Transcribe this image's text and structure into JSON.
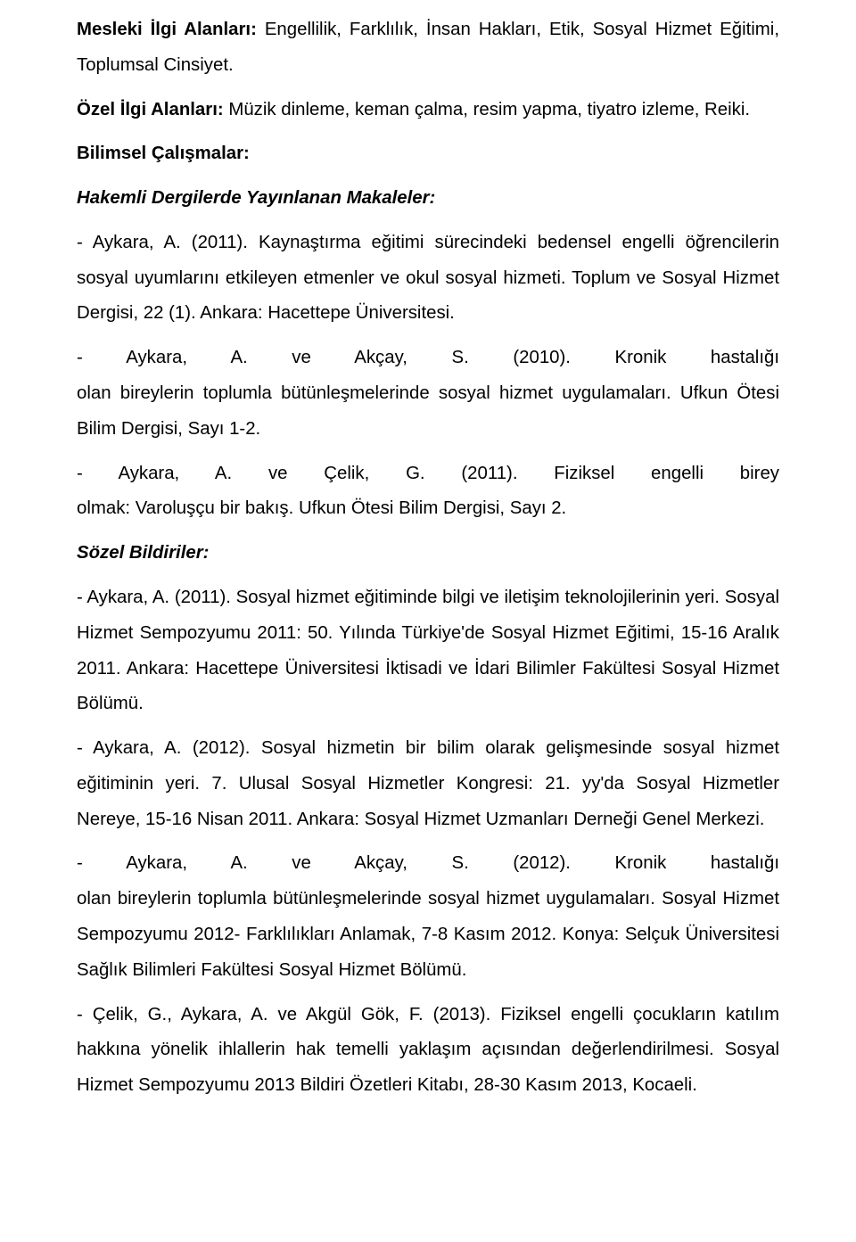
{
  "p1_label": "Mesleki İlgi Alanları:",
  "p1_text": " Engellilik, Farklılık, İnsan Hakları, Etik, Sosyal Hizmet Eğitimi, Toplumsal Cinsiyet.",
  "p2_label": "Özel İlgi Alanları:",
  "p2_text": " Müzik dinleme, keman çalma, resim yapma, tiyatro izleme, Reiki.",
  "p3_label": "Bilimsel Çalışmalar:",
  "p4_label": "Hakemli Dergilerde Yayınlanan Makaleler:",
  "p5": "- Aykara, A. (2011). Kaynaştırma eğitimi sürecindeki bedensel engelli öğrencilerin sosyal uyumlarını etkileyen etmenler ve okul sosyal hizmeti. Toplum ve Sosyal Hizmet Dergisi, 22 (1). Ankara: Hacettepe Üniversitesi.",
  "p6a": "-  Aykara,  A.  ve  Akçay,  S.  (2010).  Kronik  hastalığı",
  "p6b": "olan bireylerin toplumla bütünleşmelerinde sosyal hizmet uygulamaları. Ufkun Ötesi Bilim Dergisi, Sayı 1-2.",
  "p7a": "-  Aykara,  A.  ve  Çelik, G.  (2011).  Fiziksel  engelli  birey",
  "p7b": "olmak: Varoluşçu bir bakış. Ufkun Ötesi Bilim Dergisi, Sayı 2.",
  "p8_label": "Sözel Bildiriler:",
  "p9": "- Aykara, A. (2011). Sosyal hizmet eğitiminde bilgi ve iletişim teknolojilerinin yeri. Sosyal Hizmet Sempozyumu 2011: 50. Yılında Türkiye'de Sosyal Hizmet Eğitimi, 15-16 Aralık 2011. Ankara: Hacettepe Üniversitesi İktisadi ve İdari Bilimler Fakültesi Sosyal Hizmet Bölümü.",
  "p10": "- Aykara, A. (2012). Sosyal hizmetin bir bilim olarak gelişmesinde sosyal hizmet eğitiminin yeri. 7. Ulusal Sosyal Hizmetler Kongresi: 21. yy'da Sosyal Hizmetler Nereye, 15-16 Nisan 2011. Ankara: Sosyal Hizmet Uzmanları Derneği Genel Merkezi.",
  "p11a": "-  Aykara,  A.  ve  Akçay,  S.  (2012).  Kronik hastalığı",
  "p11b": "olan bireylerin toplumla bütünleşmelerinde sosyal hizmet uygulamaları. Sosyal Hizmet Sempozyumu 2012- Farklılıkları Anlamak, 7-8 Kasım 2012. Konya: Selçuk Üniversitesi Sağlık Bilimleri Fakültesi Sosyal Hizmet Bölümü.",
  "p12": "- Çelik, G., Aykara, A. ve Akgül Gök, F. (2013). Fiziksel engelli çocukların katılım hakkına yönelik ihlallerin hak temelli yaklaşım açısından değerlendirilmesi. Sosyal Hizmet Sempozyumu 2013 Bildiri Özetleri Kitabı, 28-30 Kasım 2013, Kocaeli."
}
